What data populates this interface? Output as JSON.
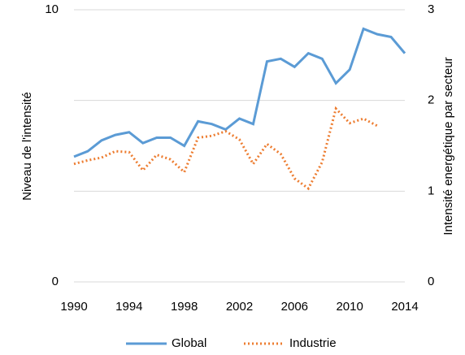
{
  "chart_data": {
    "type": "line",
    "y_label": "Niveau de l'intensité",
    "y2_label": "Intensité energétique par secteur",
    "x": [
      1990,
      1991,
      1992,
      1993,
      1994,
      1995,
      1996,
      1997,
      1998,
      1999,
      2000,
      2001,
      2002,
      2003,
      2004,
      2005,
      2006,
      2007,
      2008,
      2009,
      2010,
      2011,
      2012,
      2013,
      2014
    ],
    "xlim": [
      1990,
      2014
    ],
    "xticks": [
      1990,
      1994,
      1998,
      2002,
      2006,
      2010,
      2014
    ],
    "ylim": [
      0,
      10
    ],
    "yticks": [
      0,
      10
    ],
    "y2lim": [
      0,
      3
    ],
    "y2ticks": [
      0,
      1,
      2,
      3
    ],
    "grid": true,
    "legend": "bottom",
    "series": [
      {
        "name": "Global",
        "color": "#5b9bd5",
        "style": "solid",
        "values": [
          4.6,
          4.8,
          5.2,
          5.4,
          5.5,
          5.1,
          5.3,
          5.3,
          5.0,
          5.9,
          5.8,
          5.6,
          6.0,
          5.8,
          8.1,
          8.2,
          7.9,
          8.4,
          8.2,
          7.3,
          7.8,
          9.3,
          9.1,
          9.0,
          8.4
        ]
      },
      {
        "name": "Industrie",
        "color": "#ed7d31",
        "style": "dotted",
        "axis": "y2",
        "values": [
          1.3,
          1.34,
          1.37,
          1.44,
          1.43,
          1.23,
          1.4,
          1.35,
          1.21,
          1.59,
          1.61,
          1.66,
          1.57,
          1.3,
          1.52,
          1.41,
          1.14,
          1.03,
          1.32,
          1.91,
          1.75,
          1.8,
          1.72,
          null,
          null
        ]
      }
    ]
  }
}
